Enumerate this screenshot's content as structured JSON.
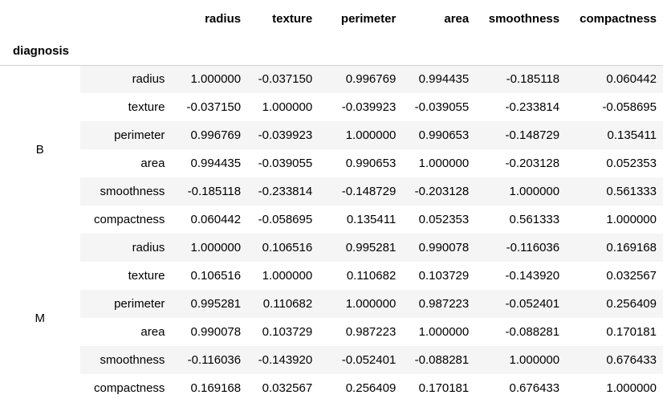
{
  "table": {
    "index_name": "diagnosis",
    "columns": [
      "radius",
      "texture",
      "perimeter",
      "area",
      "smoothness",
      "compactness"
    ],
    "groups": [
      {
        "label": "B",
        "rows": [
          {
            "label": "radius",
            "values": [
              "1.000000",
              "-0.037150",
              "0.996769",
              "0.994435",
              "-0.185118",
              "0.060442"
            ]
          },
          {
            "label": "texture",
            "values": [
              "-0.037150",
              "1.000000",
              "-0.039923",
              "-0.039055",
              "-0.233814",
              "-0.058695"
            ]
          },
          {
            "label": "perimeter",
            "values": [
              "0.996769",
              "-0.039923",
              "1.000000",
              "0.990653",
              "-0.148729",
              "0.135411"
            ]
          },
          {
            "label": "area",
            "values": [
              "0.994435",
              "-0.039055",
              "0.990653",
              "1.000000",
              "-0.203128",
              "0.052353"
            ]
          },
          {
            "label": "smoothness",
            "values": [
              "-0.185118",
              "-0.233814",
              "-0.148729",
              "-0.203128",
              "1.000000",
              "0.561333"
            ]
          },
          {
            "label": "compactness",
            "values": [
              "0.060442",
              "-0.058695",
              "0.135411",
              "0.052353",
              "0.561333",
              "1.000000"
            ]
          }
        ]
      },
      {
        "label": "M",
        "rows": [
          {
            "label": "radius",
            "values": [
              "1.000000",
              "0.106516",
              "0.995281",
              "0.990078",
              "-0.116036",
              "0.169168"
            ]
          },
          {
            "label": "texture",
            "values": [
              "0.106516",
              "1.000000",
              "0.110682",
              "0.103729",
              "-0.143920",
              "0.032567"
            ]
          },
          {
            "label": "perimeter",
            "values": [
              "0.995281",
              "0.110682",
              "1.000000",
              "0.987223",
              "-0.052401",
              "0.256409"
            ]
          },
          {
            "label": "area",
            "values": [
              "0.990078",
              "0.103729",
              "0.987223",
              "1.000000",
              "-0.088281",
              "0.170181"
            ]
          },
          {
            "label": "smoothness",
            "values": [
              "-0.116036",
              "-0.143920",
              "-0.052401",
              "-0.088281",
              "1.000000",
              "0.676433"
            ]
          },
          {
            "label": "compactness",
            "values": [
              "0.169168",
              "0.032567",
              "0.256409",
              "0.170181",
              "0.676433",
              "1.000000"
            ]
          }
        ]
      }
    ]
  },
  "colors": {
    "stripe": "#f5f5f5",
    "header_rule": "#d0d0d0",
    "text": "#000000"
  }
}
